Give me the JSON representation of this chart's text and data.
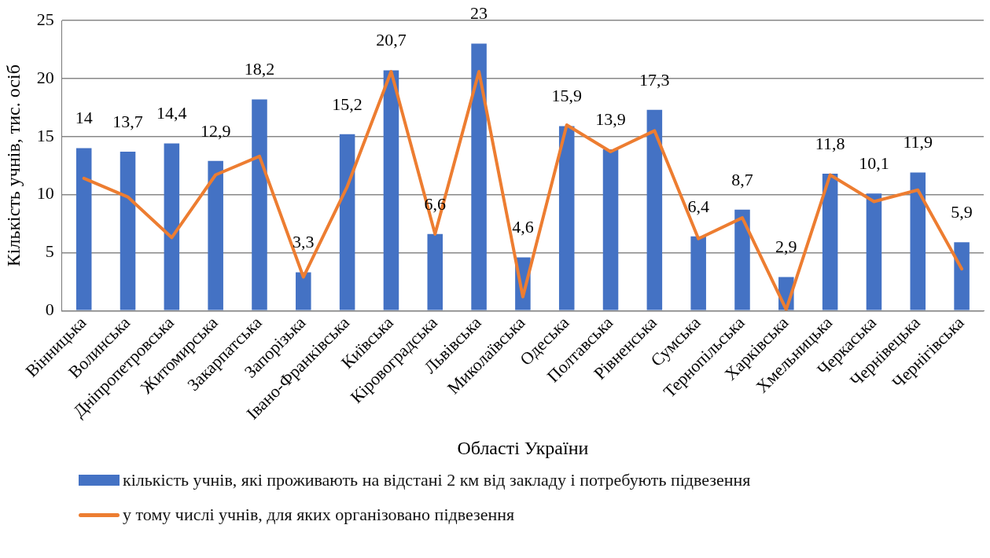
{
  "chart_data": {
    "type": "bar",
    "xlabel": "Області України",
    "ylabel": "Кількість учнів, тис. осіб",
    "categories": [
      "Вінницька",
      "Волинська",
      "Дніпропетровська",
      "Житомирська",
      "Закарпатська",
      "Запорізька",
      "Івано-Франківська",
      "Київська",
      "Кіровоградська",
      "Львівська",
      "Миколаївська",
      "Одеська",
      "Полтавська",
      "Рівненська",
      "Сумська",
      "Тернопільська",
      "Харківська",
      "Хмельницька",
      "Черкаська",
      "Чернівецька",
      "Чернігівська"
    ],
    "series": [
      {
        "name": "кількість  учнів, які проживають на відстані 2 км від закладу і потребують підвезення",
        "color": "#4472c4",
        "values": [
          14,
          13.7,
          14.4,
          12.9,
          18.2,
          3.3,
          15.2,
          20.7,
          6.6,
          23,
          4.6,
          15.9,
          13.9,
          17.3,
          6.4,
          8.7,
          2.9,
          11.8,
          10.1,
          11.9,
          5.9
        ]
      },
      {
        "name": "у тому числі учнів, для яких організовано підвезення",
        "type": "line",
        "color": "#ed7d31",
        "values": [
          11.4,
          9.8,
          6.3,
          11.7,
          13.3,
          2.9,
          10.7,
          20.6,
          6.6,
          20.6,
          1.2,
          16,
          13.7,
          15.5,
          6.2,
          8,
          0.1,
          11.7,
          9.4,
          10.4,
          3.6
        ]
      }
    ],
    "ylim": [
      0,
      25
    ],
    "yticks": [
      0,
      5,
      10,
      15,
      20,
      25
    ],
    "grid": "y",
    "legend": "bottom",
    "marker": "none",
    "value_labels": [
      "14",
      "13,7",
      "14,4",
      "12,9",
      "18,2",
      "3,3",
      "15,2",
      "20,7",
      "6,6",
      "23",
      "4,6",
      "15,9",
      "13,9",
      "17,3",
      "6,4",
      "8,7",
      "2,9",
      "11,8",
      "10,1",
      "11,9",
      "5,9"
    ]
  }
}
